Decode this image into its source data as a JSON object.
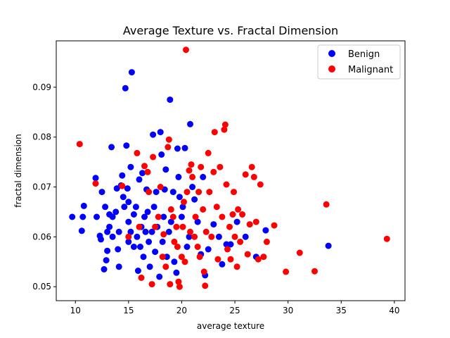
{
  "chart_data": {
    "type": "scatter",
    "title": "Average Texture vs. Fractal Dimension",
    "xlabel": "average texture",
    "ylabel": "fractal dimension",
    "xlim": [
      8.2,
      41.0
    ],
    "ylim": [
      0.0472,
      0.0993
    ],
    "xticks": [
      10,
      15,
      20,
      25,
      30,
      35,
      40
    ],
    "yticks": [
      0.05,
      0.06,
      0.07,
      0.08,
      0.09
    ],
    "ytick_labels": [
      "0.05",
      "0.06",
      "0.07",
      "0.08",
      "0.09"
    ],
    "grid": false,
    "legend_position": "top-right",
    "series": [
      {
        "name": "Benign",
        "color": "#0000ff",
        "points": [
          [
            9.7,
            0.064
          ],
          [
            10.6,
            0.0612
          ],
          [
            10.8,
            0.0662
          ],
          [
            10.7,
            0.064
          ],
          [
            11.9,
            0.0718
          ],
          [
            12.0,
            0.064
          ],
          [
            12.3,
            0.0602
          ],
          [
            12.4,
            0.0595
          ],
          [
            12.5,
            0.069
          ],
          [
            12.8,
            0.066
          ],
          [
            12.7,
            0.0535
          ],
          [
            12.9,
            0.0553
          ],
          [
            13.0,
            0.0572
          ],
          [
            13.0,
            0.061
          ],
          [
            13.2,
            0.0645
          ],
          [
            13.2,
            0.062
          ],
          [
            13.5,
            0.06
          ],
          [
            13.4,
            0.078
          ],
          [
            13.5,
            0.064
          ],
          [
            13.8,
            0.065
          ],
          [
            13.9,
            0.0697
          ],
          [
            14.0,
            0.0575
          ],
          [
            14.1,
            0.061
          ],
          [
            14.1,
            0.054
          ],
          [
            14.3,
            0.0703
          ],
          [
            14.4,
            0.0723
          ],
          [
            14.5,
            0.068
          ],
          [
            14.6,
            0.066
          ],
          [
            14.7,
            0.0898
          ],
          [
            14.8,
            0.0783
          ],
          [
            14.9,
            0.0697
          ],
          [
            15.0,
            0.059
          ],
          [
            15.0,
            0.067
          ],
          [
            15.0,
            0.063
          ],
          [
            15.2,
            0.074
          ],
          [
            15.2,
            0.061
          ],
          [
            15.3,
            0.093
          ],
          [
            15.5,
            0.058
          ],
          [
            15.5,
            0.0645
          ],
          [
            15.7,
            0.066
          ],
          [
            15.8,
            0.06
          ],
          [
            15.9,
            0.0532
          ],
          [
            16.0,
            0.0715
          ],
          [
            16.1,
            0.058
          ],
          [
            16.2,
            0.062
          ],
          [
            16.3,
            0.0728
          ],
          [
            16.4,
            0.056
          ],
          [
            16.5,
            0.064
          ],
          [
            16.6,
            0.061
          ],
          [
            16.7,
            0.0695
          ],
          [
            16.8,
            0.065
          ],
          [
            16.9,
            0.059
          ],
          [
            17.0,
            0.054
          ],
          [
            17.2,
            0.061
          ],
          [
            17.3,
            0.0805
          ],
          [
            17.4,
            0.066
          ],
          [
            17.5,
            0.057
          ],
          [
            17.6,
            0.069
          ],
          [
            17.7,
            0.062
          ],
          [
            17.9,
            0.052
          ],
          [
            18.0,
            0.081
          ],
          [
            18.1,
            0.0765
          ],
          [
            18.2,
            0.059
          ],
          [
            18.3,
            0.064
          ],
          [
            18.4,
            0.0695
          ],
          [
            18.5,
            0.0735
          ],
          [
            18.6,
            0.056
          ],
          [
            18.8,
            0.061
          ],
          [
            18.9,
            0.0875
          ],
          [
            19.0,
            0.063
          ],
          [
            19.2,
            0.069
          ],
          [
            19.3,
            0.055
          ],
          [
            19.5,
            0.0528
          ],
          [
            19.6,
            0.0777
          ],
          [
            19.7,
            0.072
          ],
          [
            19.8,
            0.068
          ],
          [
            20.0,
            0.064
          ],
          [
            20.1,
            0.066
          ],
          [
            20.3,
            0.0778
          ],
          [
            20.5,
            0.058
          ],
          [
            20.7,
            0.06
          ],
          [
            20.8,
            0.0826
          ],
          [
            21.0,
            0.07
          ],
          [
            21.2,
            0.0675
          ],
          [
            21.5,
            0.063
          ],
          [
            21.8,
            0.0565
          ],
          [
            22.0,
            0.072
          ],
          [
            22.2,
            0.0523
          ],
          [
            22.5,
            0.0575
          ],
          [
            23.0,
            0.0625
          ],
          [
            23.5,
            0.06
          ],
          [
            23.8,
            0.0545
          ],
          [
            24.2,
            0.0585
          ],
          [
            24.6,
            0.0585
          ],
          [
            25.2,
            0.063
          ],
          [
            26.0,
            0.06
          ],
          [
            27.0,
            0.056
          ],
          [
            27.9,
            0.0613
          ],
          [
            33.8,
            0.0582
          ]
        ]
      },
      {
        "name": "Malignant",
        "color": "#ff0000",
        "points": [
          [
            10.4,
            0.0786
          ],
          [
            11.9,
            0.0707
          ],
          [
            14.4,
            0.0702
          ],
          [
            15.0,
            0.06
          ],
          [
            15.8,
            0.0768
          ],
          [
            16.0,
            0.062
          ],
          [
            16.2,
            0.0518
          ],
          [
            16.5,
            0.0742
          ],
          [
            16.8,
            0.073
          ],
          [
            16.9,
            0.069
          ],
          [
            17.2,
            0.0505
          ],
          [
            17.3,
            0.076
          ],
          [
            17.5,
            0.062
          ],
          [
            17.8,
            0.064
          ],
          [
            18.0,
            0.07
          ],
          [
            18.2,
            0.056
          ],
          [
            18.3,
            0.0605
          ],
          [
            18.5,
            0.054
          ],
          [
            18.7,
            0.078
          ],
          [
            18.8,
            0.0795
          ],
          [
            18.9,
            0.0505
          ],
          [
            19.0,
            0.0655
          ],
          [
            19.2,
            0.064
          ],
          [
            19.3,
            0.059
          ],
          [
            19.5,
            0.062
          ],
          [
            19.6,
            0.058
          ],
          [
            19.7,
            0.051
          ],
          [
            19.8,
            0.05
          ],
          [
            20.0,
            0.056
          ],
          [
            20.1,
            0.062
          ],
          [
            20.2,
            0.067
          ],
          [
            20.3,
            0.055
          ],
          [
            20.4,
            0.0975
          ],
          [
            20.5,
            0.069
          ],
          [
            20.7,
            0.0733
          ],
          [
            20.8,
            0.061
          ],
          [
            20.9,
            0.0745
          ],
          [
            21.0,
            0.072
          ],
          [
            21.2,
            0.06
          ],
          [
            21.3,
            0.064
          ],
          [
            21.5,
            0.058
          ],
          [
            21.6,
            0.069
          ],
          [
            21.7,
            0.056
          ],
          [
            21.8,
            0.074
          ],
          [
            22.0,
            0.0655
          ],
          [
            22.1,
            0.053
          ],
          [
            22.2,
            0.0502
          ],
          [
            22.3,
            0.061
          ],
          [
            22.5,
            0.0768
          ],
          [
            22.6,
            0.069
          ],
          [
            22.8,
            0.06
          ],
          [
            23.0,
            0.073
          ],
          [
            23.1,
            0.081
          ],
          [
            23.3,
            0.066
          ],
          [
            23.4,
            0.0555
          ],
          [
            23.6,
            0.074
          ],
          [
            23.8,
            0.064
          ],
          [
            24.0,
            0.0815
          ],
          [
            24.1,
            0.0825
          ],
          [
            24.2,
            0.0705
          ],
          [
            24.3,
            0.0575
          ],
          [
            24.5,
            0.062
          ],
          [
            24.6,
            0.0555
          ],
          [
            24.8,
            0.0645
          ],
          [
            24.9,
            0.069
          ],
          [
            25.0,
            0.06
          ],
          [
            25.2,
            0.054
          ],
          [
            25.3,
            0.0655
          ],
          [
            25.5,
            0.059
          ],
          [
            25.7,
            0.0645
          ],
          [
            26.0,
            0.0725
          ],
          [
            26.2,
            0.0565
          ],
          [
            26.4,
            0.0625
          ],
          [
            26.6,
            0.074
          ],
          [
            26.8,
            0.072
          ],
          [
            27.0,
            0.063
          ],
          [
            27.2,
            0.0555
          ],
          [
            27.4,
            0.0705
          ],
          [
            27.7,
            0.056
          ],
          [
            28.0,
            0.059
          ],
          [
            28.7,
            0.0623
          ],
          [
            29.8,
            0.053
          ],
          [
            31.1,
            0.0568
          ],
          [
            32.5,
            0.0531
          ],
          [
            33.6,
            0.0665
          ],
          [
            39.3,
            0.0596
          ]
        ]
      }
    ]
  }
}
